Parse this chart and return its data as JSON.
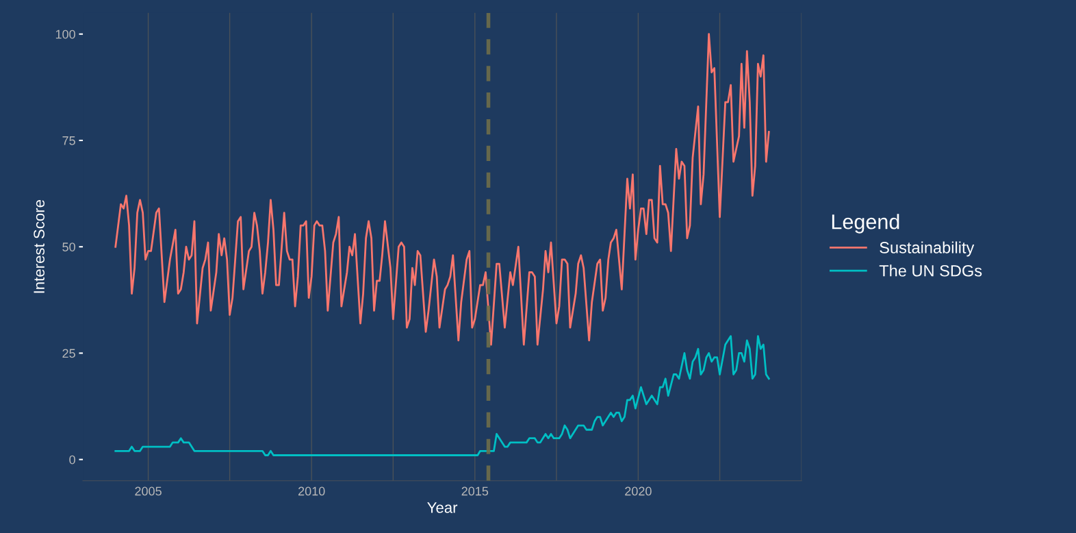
{
  "chart_data": {
    "type": "line",
    "xlabel": "Year",
    "ylabel": "Interest Score",
    "legend_title": "Legend",
    "legend": "right",
    "grid": "x",
    "line_style": "solid",
    "marker": "none",
    "xlim": [
      "2003-01",
      "2025-01"
    ],
    "ylim": [
      -5,
      105
    ],
    "xticks": [
      {
        "value": "2005-01",
        "label": "2005"
      },
      {
        "value": "2007-07",
        "label": null
      },
      {
        "value": "2010-01",
        "label": "2010"
      },
      {
        "value": "2012-07",
        "label": null
      },
      {
        "value": "2015-01",
        "label": "2015"
      },
      {
        "value": "2017-07",
        "label": null
      },
      {
        "value": "2020-01",
        "label": "2020"
      },
      {
        "value": "2022-07",
        "label": null
      },
      {
        "value": "2025-01",
        "label": null
      }
    ],
    "yticks": [
      0,
      25,
      50,
      75,
      100
    ],
    "ref_lines": [
      {
        "axis": "x",
        "value": "2015-06",
        "label": null,
        "color": "#6e6e4a",
        "line_style": "dashed"
      }
    ],
    "series": [
      {
        "name": "Sustainability",
        "color": "#f8766d",
        "x": [
          "2004-01",
          "2004-03",
          "2004-04",
          "2004-05",
          "2004-06",
          "2004-07",
          "2004-08",
          "2004-09",
          "2004-10",
          "2004-11",
          "2004-12",
          "2005-01",
          "2005-02",
          "2005-04",
          "2005-05",
          "2005-07",
          "2005-09",
          "2005-11",
          "2005-12",
          "2006-01",
          "2006-02",
          "2006-03",
          "2006-04",
          "2006-05",
          "2006-06",
          "2006-07",
          "2006-09",
          "2006-10",
          "2006-11",
          "2006-12",
          "2007-02",
          "2007-03",
          "2007-04",
          "2007-05",
          "2007-06",
          "2007-07",
          "2007-08",
          "2007-10",
          "2007-11",
          "2007-12",
          "2008-02",
          "2008-03",
          "2008-04",
          "2008-05",
          "2008-06",
          "2008-07",
          "2008-08",
          "2008-09",
          "2008-10",
          "2008-11",
          "2008-12",
          "2009-01",
          "2009-03",
          "2009-04",
          "2009-05",
          "2009-06",
          "2009-07",
          "2009-08",
          "2009-09",
          "2009-10",
          "2009-11",
          "2009-12",
          "2010-01",
          "2010-02",
          "2010-03",
          "2010-04",
          "2010-05",
          "2010-06",
          "2010-07",
          "2010-09",
          "2010-10",
          "2010-11",
          "2010-12",
          "2011-01",
          "2011-02",
          "2011-03",
          "2011-04",
          "2011-05",
          "2011-07",
          "2011-08",
          "2011-09",
          "2011-10",
          "2011-11",
          "2011-12",
          "2012-01",
          "2012-02",
          "2012-03",
          "2012-04",
          "2012-06",
          "2012-07",
          "2012-09",
          "2012-10",
          "2012-11",
          "2012-12",
          "2013-01",
          "2013-02",
          "2013-03",
          "2013-04",
          "2013-05",
          "2013-07",
          "2013-08",
          "2013-10",
          "2013-11",
          "2013-12",
          "2014-02",
          "2014-03",
          "2014-04",
          "2014-05",
          "2014-07",
          "2014-08",
          "2014-10",
          "2014-11",
          "2014-12",
          "2015-01",
          "2015-03",
          "2015-04",
          "2015-05",
          "2015-07",
          "2015-09",
          "2015-10",
          "2015-12",
          "2016-02",
          "2016-03",
          "2016-05",
          "2016-07",
          "2016-09",
          "2016-10",
          "2016-11",
          "2016-12",
          "2017-02",
          "2017-03",
          "2017-04",
          "2017-05",
          "2017-07",
          "2017-08",
          "2017-09",
          "2017-10",
          "2017-11",
          "2017-12",
          "2018-02",
          "2018-03",
          "2018-04",
          "2018-05",
          "2018-07",
          "2018-08",
          "2018-10",
          "2018-11",
          "2018-12",
          "2019-01",
          "2019-02",
          "2019-03",
          "2019-04",
          "2019-05",
          "2019-07",
          "2019-09",
          "2019-10",
          "2019-11",
          "2019-12",
          "2020-01",
          "2020-02",
          "2020-03",
          "2020-04",
          "2020-05",
          "2020-06",
          "2020-07",
          "2020-08",
          "2020-09",
          "2020-10",
          "2020-11",
          "2020-12",
          "2021-01",
          "2021-03",
          "2021-04",
          "2021-05",
          "2021-06",
          "2021-07",
          "2021-08",
          "2021-09",
          "2021-11",
          "2021-12",
          "2022-01",
          "2022-03",
          "2022-04",
          "2022-05",
          "2022-07",
          "2022-09",
          "2022-10",
          "2022-11",
          "2022-12",
          "2023-02",
          "2023-03",
          "2023-04",
          "2023-05",
          "2023-06",
          "2023-07",
          "2023-08",
          "2023-09",
          "2023-10",
          "2023-11",
          "2023-12",
          "2024-01"
        ],
        "values": [
          50,
          60,
          59,
          62,
          55,
          39,
          45,
          58,
          61,
          58,
          47,
          49,
          49,
          58,
          59,
          37,
          47,
          54,
          39,
          40,
          44,
          50,
          47,
          48,
          56,
          32,
          45,
          47,
          51,
          35,
          44,
          53,
          48,
          52,
          47,
          34,
          38,
          56,
          57,
          40,
          49,
          50,
          58,
          55,
          49,
          39,
          44,
          51,
          61,
          54,
          41,
          41,
          58,
          49,
          47,
          47,
          36,
          43,
          55,
          55,
          56,
          38,
          43,
          55,
          56,
          55,
          55,
          49,
          35,
          51,
          53,
          57,
          36,
          40,
          44,
          50,
          48,
          53,
          32,
          39,
          52,
          56,
          52,
          35,
          42,
          42,
          48,
          56,
          45,
          33,
          50,
          51,
          50,
          31,
          33,
          45,
          41,
          49,
          48,
          30,
          35,
          47,
          43,
          31,
          40,
          41,
          43,
          48,
          28,
          37,
          47,
          49,
          31,
          33,
          41,
          41,
          44,
          27,
          46,
          46,
          31,
          44,
          41,
          50,
          27,
          44,
          44,
          43,
          27,
          40,
          49,
          44,
          51,
          32,
          36,
          47,
          47,
          46,
          31,
          39,
          46,
          48,
          45,
          28,
          37,
          46,
          47,
          35,
          38,
          47,
          51,
          52,
          54,
          40,
          66,
          59,
          67,
          47,
          54,
          59,
          59,
          53,
          61,
          61,
          52,
          51,
          69,
          60,
          60,
          58,
          49,
          73,
          66,
          70,
          69,
          52,
          55,
          71,
          83,
          60,
          67,
          100,
          91,
          92,
          57,
          84,
          84,
          88,
          70,
          76,
          93,
          78,
          96,
          84,
          62,
          69,
          93,
          90,
          95,
          70,
          77
        ]
      },
      {
        "name": "The UN SDGs",
        "color": "#00bfc4",
        "x": [
          "2004-01",
          "2004-06",
          "2004-07",
          "2004-08",
          "2004-10",
          "2004-11",
          "2005-09",
          "2005-10",
          "2005-12",
          "2006-01",
          "2006-02",
          "2006-04",
          "2006-06",
          "2008-07",
          "2008-08",
          "2008-09",
          "2008-10",
          "2008-11",
          "2015-02",
          "2015-03",
          "2015-08",
          "2015-09",
          "2015-12",
          "2016-01",
          "2016-02",
          "2016-08",
          "2016-09",
          "2016-11",
          "2016-12",
          "2017-01",
          "2017-03",
          "2017-04",
          "2017-05",
          "2017-06",
          "2017-08",
          "2017-09",
          "2017-10",
          "2017-11",
          "2017-12",
          "2018-03",
          "2018-05",
          "2018-06",
          "2018-08",
          "2018-09",
          "2018-10",
          "2018-11",
          "2018-12",
          "2019-03",
          "2019-04",
          "2019-05",
          "2019-06",
          "2019-07",
          "2019-08",
          "2019-09",
          "2019-10",
          "2019-11",
          "2019-12",
          "2020-02",
          "2020-04",
          "2020-06",
          "2020-08",
          "2020-09",
          "2020-10",
          "2020-11",
          "2020-12",
          "2021-02",
          "2021-03",
          "2021-04",
          "2021-06",
          "2021-07",
          "2021-08",
          "2021-09",
          "2021-10",
          "2021-11",
          "2021-12",
          "2022-01",
          "2022-02",
          "2022-03",
          "2022-04",
          "2022-05",
          "2022-06",
          "2022-07",
          "2022-09",
          "2022-11",
          "2022-12",
          "2023-01",
          "2023-02",
          "2023-03",
          "2023-04",
          "2023-05",
          "2023-06",
          "2023-07",
          "2023-08",
          "2023-09",
          "2023-10",
          "2023-11",
          "2023-12",
          "2024-01"
        ],
        "values": [
          2,
          2,
          3,
          2,
          2,
          3,
          3,
          4,
          4,
          5,
          4,
          4,
          2,
          2,
          1,
          1,
          2,
          1,
          1,
          2,
          2,
          6,
          3,
          3,
          4,
          4,
          5,
          5,
          4,
          4,
          6,
          5,
          6,
          5,
          5,
          6,
          8,
          7,
          5,
          8,
          8,
          7,
          7,
          9,
          10,
          10,
          8,
          11,
          10,
          11,
          11,
          9,
          10,
          14,
          14,
          15,
          12,
          17,
          13,
          15,
          13,
          17,
          17,
          19,
          15,
          20,
          20,
          19,
          25,
          21,
          19,
          23,
          24,
          26,
          20,
          21,
          24,
          25,
          23,
          24,
          24,
          20,
          27,
          29,
          20,
          21,
          25,
          25,
          23,
          28,
          26,
          19,
          20,
          29,
          26,
          27,
          20,
          19
        ]
      }
    ]
  }
}
